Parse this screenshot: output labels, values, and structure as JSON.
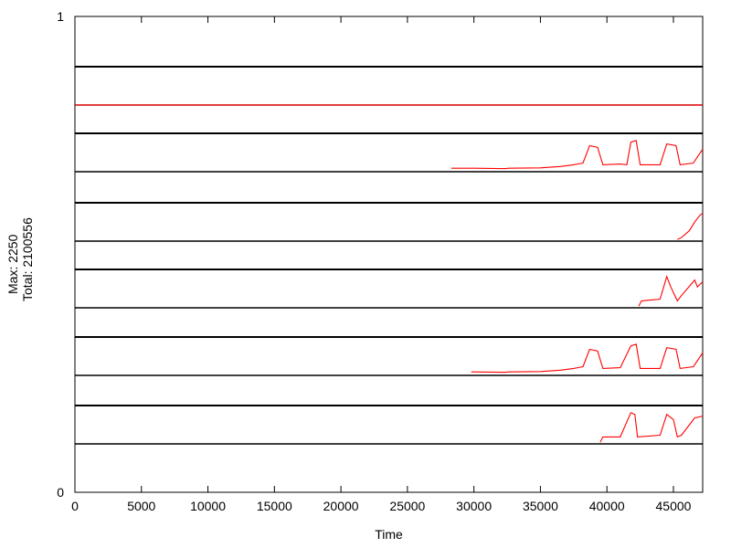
{
  "chart_data": {
    "type": "line",
    "xlabel": "Time",
    "ylabel_lines": [
      "Max: 2250",
      "Total: 2100556"
    ],
    "ylim": [
      0,
      1
    ],
    "xlim": [
      0,
      47200
    ],
    "y_tick_labels": [
      "0",
      "1"
    ],
    "x_ticks": [
      0,
      5000,
      10000,
      15000,
      20000,
      25000,
      30000,
      35000,
      40000,
      45000
    ],
    "grid": false,
    "series_color": "#ff0000",
    "baseline_color": "#8b0000",
    "band_color": "#000000",
    "bands": [
      {
        "x": [
          0,
          29000,
          32000,
          35000,
          36500,
          38000,
          38700,
          39300,
          39700,
          41000,
          41800,
          42300,
          42600,
          44000,
          44500,
          45200,
          45500,
          46500,
          47200
        ],
        "y": [
          0,
          0,
          0,
          0,
          0,
          0,
          0,
          0,
          0,
          0,
          0,
          0,
          0,
          0,
          0,
          0,
          0,
          0,
          0
        ]
      },
      {
        "x": [
          28300,
          28500,
          30000,
          32000,
          32400,
          32600,
          35000,
          36500,
          37500,
          38200,
          38700,
          39300,
          39700,
          41000,
          41500,
          41800,
          42200,
          42500,
          44000,
          44500,
          45200,
          45500,
          46500,
          47200
        ],
        "y": [
          0.1,
          0.1,
          0.1,
          0.09,
          0.09,
          0.1,
          0.11,
          0.15,
          0.2,
          0.25,
          0.75,
          0.7,
          0.2,
          0.22,
          0.2,
          0.85,
          0.9,
          0.2,
          0.2,
          0.8,
          0.75,
          0.2,
          0.25,
          0.65
        ]
      },
      {
        "x": [
          45300,
          45600,
          46200,
          46600,
          47000,
          47200
        ],
        "y": [
          0.05,
          0.1,
          0.3,
          0.55,
          0.75,
          0.8
        ]
      },
      {
        "x": [
          42400,
          42600,
          44000,
          44500,
          44800,
          45300,
          45600,
          46600,
          46800,
          47200
        ],
        "y": [
          0.05,
          0.2,
          0.25,
          0.9,
          0.6,
          0.2,
          0.35,
          0.8,
          0.6,
          0.75
        ]
      },
      {
        "x": [
          29800,
          30000,
          32000,
          32400,
          32600,
          35000,
          36500,
          37500,
          38200,
          38700,
          39300,
          39700,
          41000,
          41800,
          42200,
          42500,
          44000,
          44500,
          45200,
          45500,
          46500,
          47200
        ],
        "y": [
          0.1,
          0.1,
          0.09,
          0.09,
          0.1,
          0.11,
          0.15,
          0.2,
          0.25,
          0.75,
          0.7,
          0.2,
          0.22,
          0.85,
          0.9,
          0.2,
          0.2,
          0.8,
          0.75,
          0.2,
          0.25,
          0.65
        ]
      },
      {
        "x": [
          39500,
          39700,
          41000,
          41800,
          42100,
          42300,
          44000,
          44500,
          45000,
          45300,
          45600,
          46600,
          47200
        ],
        "y": [
          0.05,
          0.2,
          0.2,
          0.9,
          0.85,
          0.2,
          0.25,
          0.85,
          0.7,
          0.2,
          0.25,
          0.75,
          0.8
        ]
      }
    ]
  }
}
